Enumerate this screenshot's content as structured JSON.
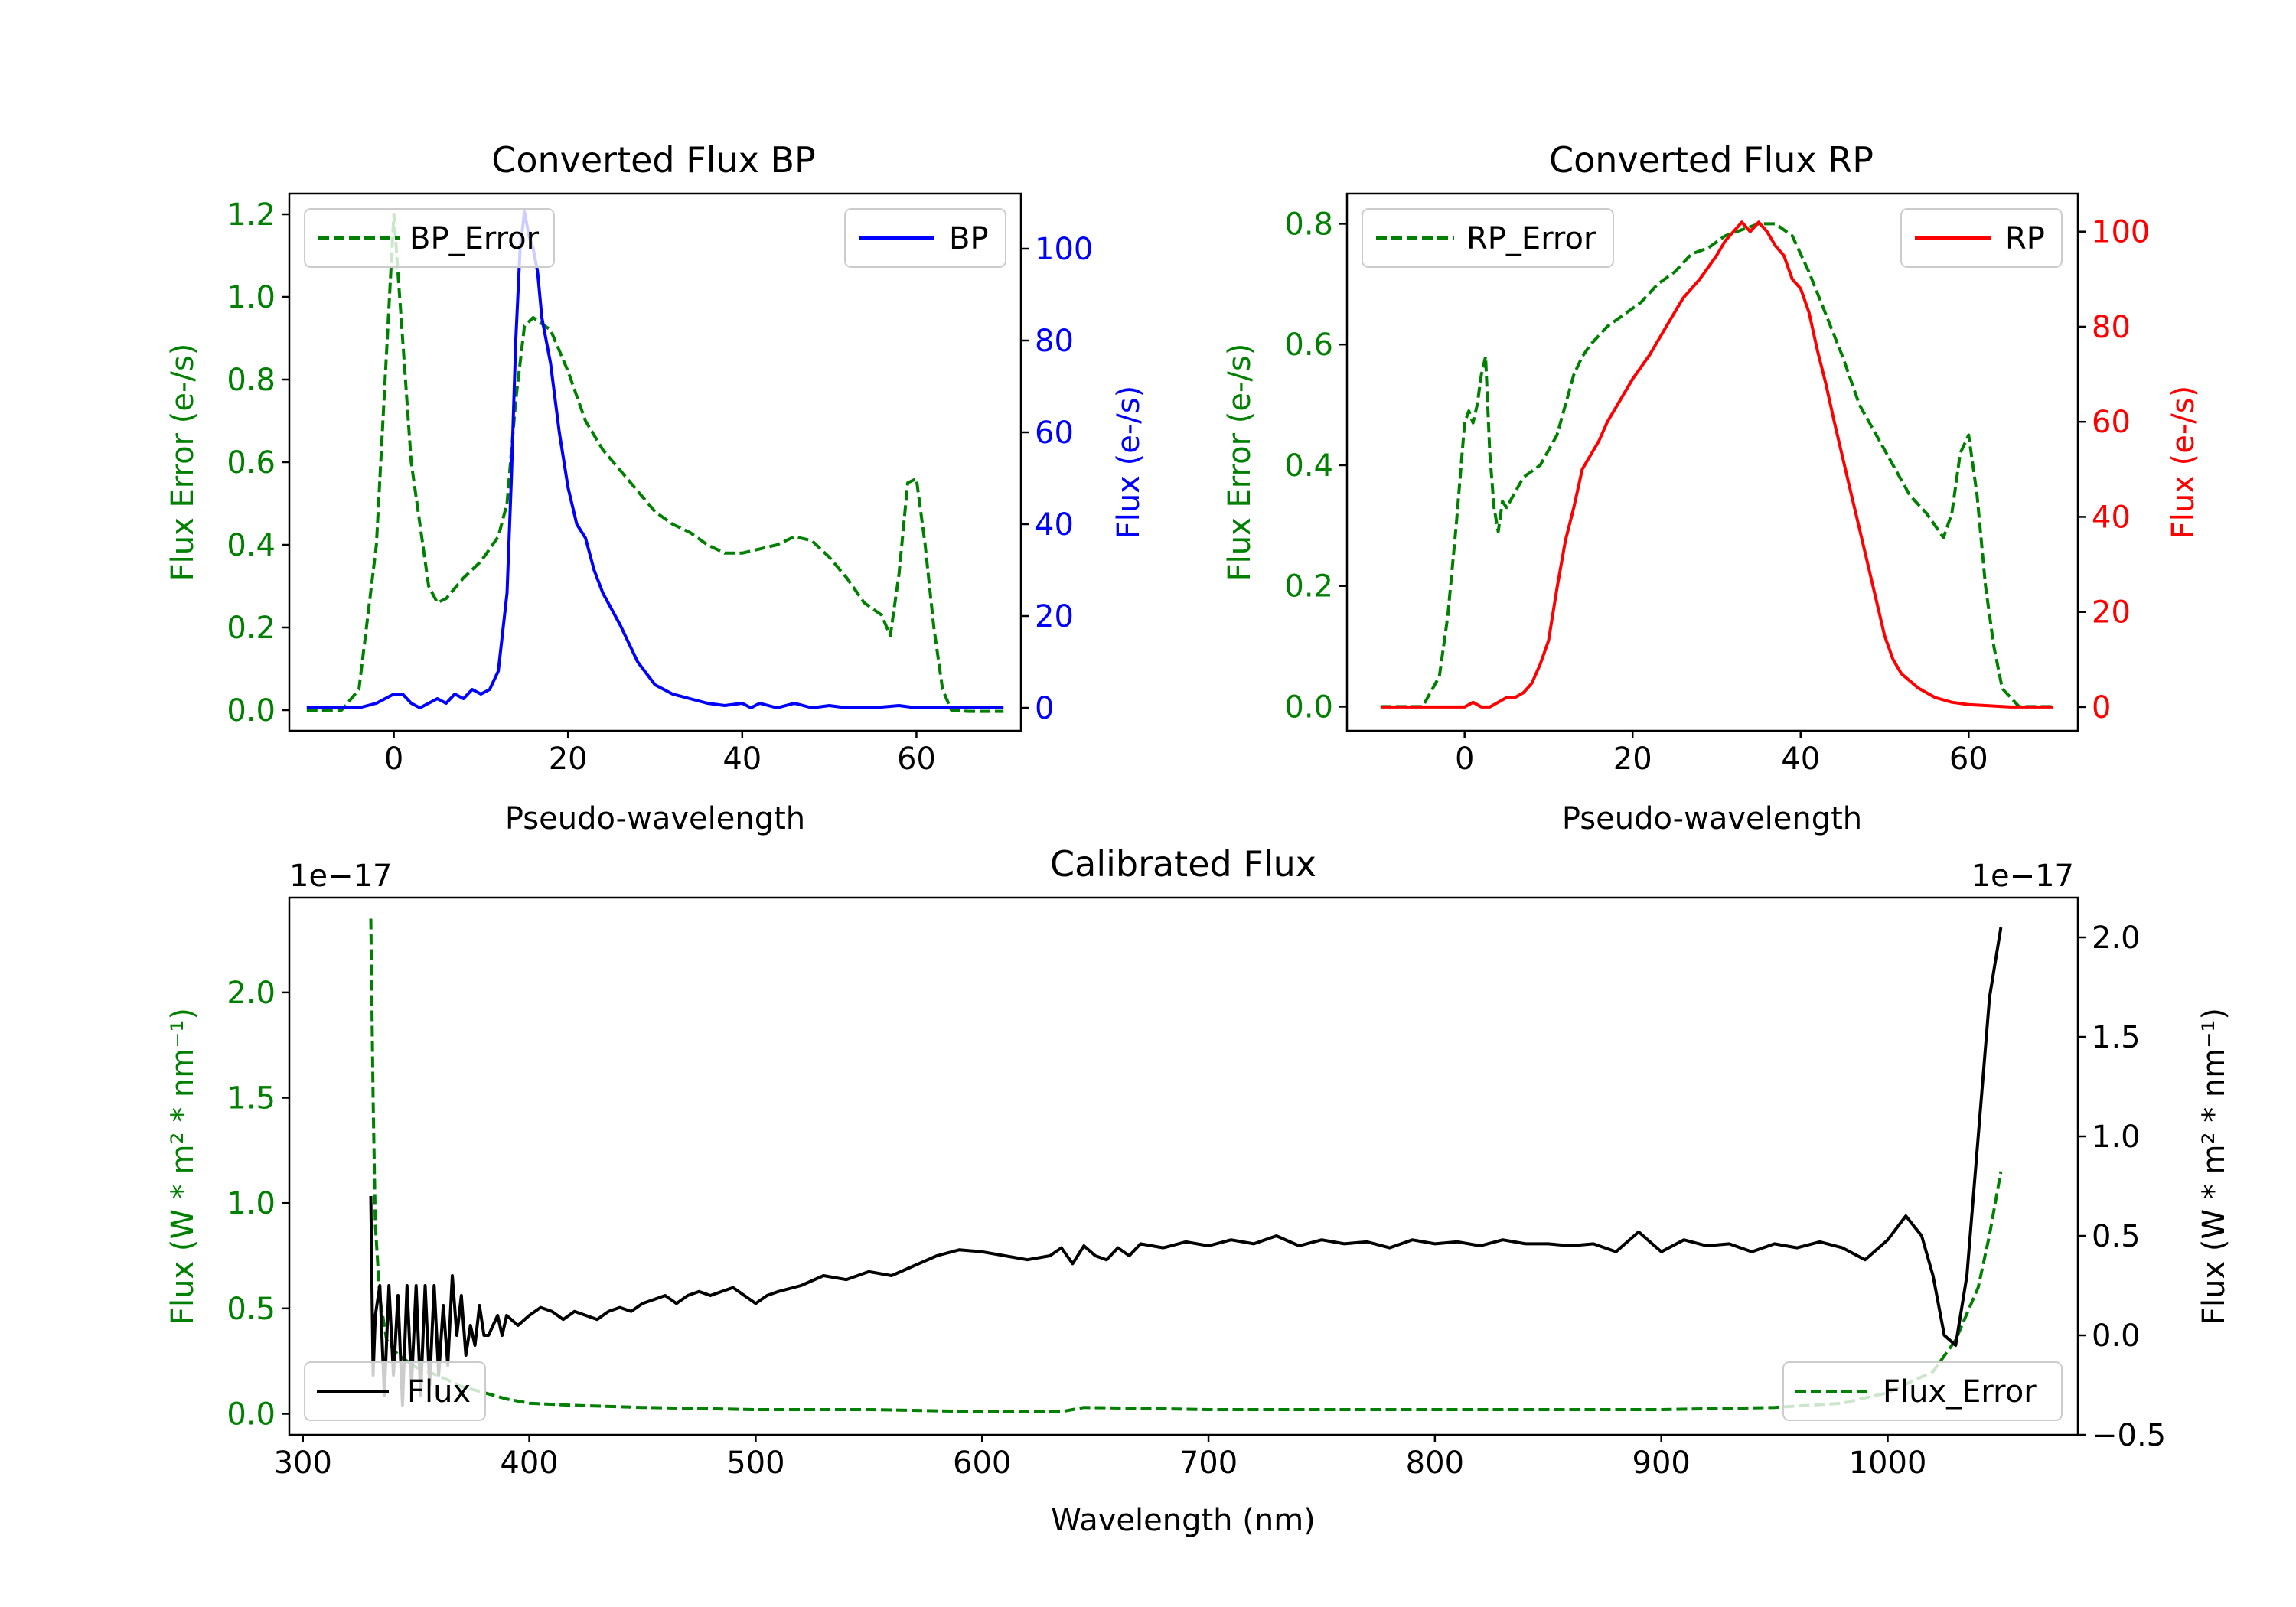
{
  "chart_data": [
    {
      "id": "bp",
      "type": "line",
      "title": "Converted Flux BP",
      "xlabel": "Pseudo-wavelength",
      "xlim": [
        -12,
        72
      ],
      "xticks": [
        0,
        20,
        40,
        60
      ],
      "y_left": {
        "label": "Flux Error (e-/s)",
        "color": "#008000",
        "lim": [
          -0.05,
          1.25
        ],
        "ticks": [
          0.0,
          0.2,
          0.4,
          0.6,
          0.8,
          1.0,
          1.2
        ],
        "ticklabels": [
          "0.0",
          "0.2",
          "0.4",
          "0.6",
          "0.8",
          "1.0",
          "1.2"
        ]
      },
      "y_right": {
        "label": "Flux (e-/s)",
        "color": "#0000ff",
        "lim": [
          -5,
          112
        ],
        "ticks": [
          0,
          20,
          40,
          60,
          80,
          100
        ],
        "ticklabels": [
          "0",
          "20",
          "40",
          "60",
          "80",
          "100"
        ]
      },
      "series": [
        {
          "name": "BP_Error",
          "axis": "left",
          "color": "#008000",
          "dashed": true,
          "x": [
            -10,
            -6,
            -4,
            -2,
            -1,
            0,
            1,
            2,
            3,
            4,
            5,
            6,
            8,
            10,
            12,
            13,
            14,
            15,
            16,
            18,
            20,
            22,
            24,
            26,
            28,
            30,
            32,
            34,
            36,
            38,
            40,
            42,
            44,
            46,
            48,
            50,
            52,
            54,
            56,
            57,
            58,
            59,
            60,
            61,
            62,
            63,
            64,
            66,
            68,
            70
          ],
          "y": [
            0.0,
            0.0,
            0.05,
            0.4,
            0.8,
            1.2,
            0.9,
            0.6,
            0.45,
            0.3,
            0.26,
            0.27,
            0.32,
            0.36,
            0.42,
            0.5,
            0.75,
            0.93,
            0.95,
            0.92,
            0.82,
            0.7,
            0.63,
            0.58,
            0.53,
            0.48,
            0.45,
            0.43,
            0.4,
            0.38,
            0.38,
            0.39,
            0.4,
            0.42,
            0.41,
            0.37,
            0.32,
            0.26,
            0.23,
            0.18,
            0.33,
            0.55,
            0.56,
            0.4,
            0.2,
            0.05,
            0.0,
            -0.003,
            -0.003,
            -0.003
          ]
        },
        {
          "name": "BP",
          "axis": "right",
          "color": "#0000ff",
          "dashed": false,
          "x": [
            -10,
            -4,
            -2,
            0,
            1,
            2,
            3,
            4,
            5,
            6,
            7,
            8,
            9,
            10,
            11,
            12,
            13,
            13.5,
            14,
            14.5,
            15,
            15.5,
            16,
            16.5,
            17,
            18,
            19,
            20,
            21,
            22,
            23,
            24,
            26,
            28,
            30,
            32,
            34,
            36,
            38,
            40,
            41,
            42,
            44,
            46,
            48,
            50,
            52,
            55,
            58,
            60,
            65,
            70
          ],
          "y": [
            0,
            0,
            1,
            3,
            3,
            1,
            0,
            1,
            2,
            1,
            3,
            2,
            4,
            3,
            4,
            8,
            25,
            50,
            80,
            100,
            108,
            103,
            100,
            95,
            85,
            75,
            60,
            48,
            40,
            37,
            30,
            25,
            18,
            10,
            5,
            3,
            2,
            1,
            0.5,
            1,
            0,
            1,
            0,
            1,
            0,
            0.5,
            0,
            0,
            0.5,
            0,
            0,
            0
          ]
        }
      ],
      "legend": [
        {
          "label": "BP_Error",
          "position": "upper-left"
        },
        {
          "label": "BP",
          "position": "upper-right"
        }
      ]
    },
    {
      "id": "rp",
      "type": "line",
      "title": "Converted Flux RP",
      "xlabel": "Pseudo-wavelength",
      "xlim": [
        -14,
        73
      ],
      "xticks": [
        0,
        20,
        40,
        60
      ],
      "y_left": {
        "label": "Flux Error (e-/s)",
        "color": "#008000",
        "lim": [
          -0.04,
          0.85
        ],
        "ticks": [
          0.0,
          0.2,
          0.4,
          0.6,
          0.8
        ],
        "ticklabels": [
          "0.0",
          "0.2",
          "0.4",
          "0.6",
          "0.8"
        ]
      },
      "y_right": {
        "label": "Flux (e-/s)",
        "color": "#ff0000",
        "lim": [
          -5,
          108
        ],
        "ticks": [
          0,
          20,
          40,
          60,
          80,
          100
        ],
        "ticklabels": [
          "0",
          "20",
          "40",
          "60",
          "80",
          "100"
        ]
      },
      "series": [
        {
          "name": "RP_Error",
          "axis": "left",
          "color": "#008000",
          "dashed": true,
          "x": [
            -10,
            -5,
            -3,
            -2,
            -1,
            0,
            0.5,
            1,
            1.5,
            2,
            2.5,
            3,
            3.5,
            4,
            4.5,
            5,
            7,
            9,
            11,
            12,
            13,
            14,
            15,
            17,
            19,
            21,
            23,
            25,
            27,
            29,
            31,
            33,
            35,
            37,
            39,
            41,
            43,
            45,
            47,
            49,
            51,
            53,
            55,
            56,
            57,
            58,
            59,
            60,
            61,
            62,
            63,
            64,
            66,
            70
          ],
          "y": [
            0.0,
            0.0,
            0.05,
            0.15,
            0.3,
            0.47,
            0.49,
            0.47,
            0.5,
            0.55,
            0.58,
            0.42,
            0.33,
            0.29,
            0.34,
            0.33,
            0.38,
            0.4,
            0.45,
            0.5,
            0.55,
            0.58,
            0.6,
            0.63,
            0.65,
            0.67,
            0.7,
            0.72,
            0.75,
            0.76,
            0.78,
            0.79,
            0.8,
            0.8,
            0.78,
            0.72,
            0.65,
            0.58,
            0.5,
            0.45,
            0.4,
            0.35,
            0.32,
            0.3,
            0.28,
            0.32,
            0.42,
            0.45,
            0.35,
            0.2,
            0.1,
            0.03,
            0.0,
            0.0
          ]
        },
        {
          "name": "RP",
          "axis": "right",
          "color": "#ff0000",
          "dashed": false,
          "x": [
            -10,
            -4,
            0,
            1,
            2,
            3,
            4,
            5,
            6,
            7,
            8,
            9,
            10,
            11,
            12,
            13,
            14,
            15,
            16,
            17,
            18,
            20,
            22,
            24,
            26,
            28,
            30,
            31,
            32,
            33,
            34,
            35,
            36,
            37,
            38,
            39,
            40,
            41,
            42,
            43,
            44,
            46,
            48,
            50,
            51,
            52,
            54,
            56,
            58,
            60,
            65,
            70
          ],
          "y": [
            0,
            0,
            0,
            1,
            0,
            0,
            1,
            2,
            2,
            3,
            5,
            9,
            14,
            25,
            35,
            42,
            50,
            53,
            56,
            60,
            63,
            69,
            74,
            80,
            86,
            90,
            95,
            98,
            100,
            102,
            100,
            102,
            100,
            97,
            95,
            90,
            88,
            83,
            75,
            68,
            60,
            45,
            30,
            15,
            10,
            7,
            4,
            2,
            1,
            0.5,
            0,
            0
          ]
        }
      ],
      "legend": [
        {
          "label": "RP_Error",
          "position": "upper-left"
        },
        {
          "label": "RP",
          "position": "upper-right"
        }
      ]
    },
    {
      "id": "cal",
      "type": "line",
      "title": "Calibrated Flux",
      "xlabel": "Wavelength (nm)",
      "xlim": [
        294,
        1084
      ],
      "xticks": [
        300,
        400,
        500,
        600,
        700,
        800,
        900,
        1000
      ],
      "y_left": {
        "label": "Flux (W * m² * nm⁻¹)",
        "offset_text": "1e−17",
        "color": "#008000",
        "lim": [
          -0.1,
          2.45
        ],
        "ticks": [
          0.0,
          0.5,
          1.0,
          1.5,
          2.0
        ],
        "ticklabels": [
          "0.0",
          "0.5",
          "1.0",
          "1.5",
          "2.0"
        ]
      },
      "y_right": {
        "label": "Flux (W * m² * nm⁻¹)",
        "offset_text": "1e−17",
        "color": "#000000",
        "lim": [
          -0.5,
          2.2
        ],
        "ticks": [
          -0.5,
          0.0,
          0.5,
          1.0,
          1.5,
          2.0
        ],
        "ticklabels": [
          "−0.5",
          "0.0",
          "0.5",
          "1.0",
          "1.5",
          "2.0"
        ]
      },
      "series": [
        {
          "name": "Flux_Error",
          "axis": "left",
          "color": "#008000",
          "dashed": true,
          "x": [
            330,
            331,
            332,
            334,
            337,
            342,
            350,
            360,
            370,
            380,
            390,
            400,
            420,
            450,
            500,
            550,
            600,
            635,
            645,
            700,
            800,
            900,
            950,
            980,
            1000,
            1010,
            1020,
            1030,
            1040,
            1045,
            1050
          ],
          "y": [
            2.35,
            1.5,
            0.9,
            0.55,
            0.35,
            0.28,
            0.22,
            0.18,
            0.13,
            0.1,
            0.07,
            0.05,
            0.04,
            0.03,
            0.02,
            0.02,
            0.01,
            0.01,
            0.03,
            0.02,
            0.02,
            0.02,
            0.03,
            0.05,
            0.1,
            0.15,
            0.2,
            0.35,
            0.6,
            0.85,
            1.15
          ]
        },
        {
          "name": "Flux",
          "axis": "right",
          "color": "#000000",
          "dashed": false,
          "x": [
            330,
            331,
            332,
            334,
            336,
            338,
            340,
            342,
            344,
            346,
            348,
            350,
            352,
            354,
            356,
            358,
            360,
            362,
            364,
            366,
            368,
            370,
            372,
            374,
            376,
            378,
            380,
            382,
            384,
            386,
            388,
            390,
            395,
            400,
            405,
            410,
            415,
            420,
            425,
            430,
            435,
            440,
            445,
            450,
            455,
            460,
            465,
            470,
            475,
            480,
            485,
            490,
            495,
            500,
            505,
            510,
            520,
            530,
            540,
            550,
            560,
            570,
            580,
            590,
            600,
            610,
            620,
            630,
            635,
            640,
            645,
            650,
            655,
            660,
            665,
            670,
            680,
            690,
            700,
            710,
            720,
            730,
            740,
            750,
            760,
            770,
            780,
            790,
            800,
            810,
            820,
            830,
            840,
            850,
            860,
            870,
            880,
            890,
            900,
            910,
            920,
            930,
            940,
            950,
            960,
            970,
            980,
            990,
            1000,
            1008,
            1015,
            1020,
            1025,
            1030,
            1035,
            1040,
            1045,
            1050
          ],
          "y": [
            0.7,
            -0.2,
            0.1,
            0.25,
            -0.3,
            0.25,
            -0.2,
            0.2,
            -0.35,
            0.25,
            -0.25,
            0.25,
            -0.3,
            0.25,
            -0.25,
            0.25,
            -0.2,
            0.15,
            -0.15,
            0.3,
            0.0,
            0.2,
            -0.1,
            0.05,
            -0.05,
            0.15,
            0.0,
            0.0,
            0.05,
            0.1,
            0.0,
            0.1,
            0.05,
            0.1,
            0.14,
            0.12,
            0.08,
            0.12,
            0.1,
            0.08,
            0.12,
            0.14,
            0.12,
            0.16,
            0.18,
            0.2,
            0.16,
            0.2,
            0.22,
            0.2,
            0.22,
            0.24,
            0.2,
            0.16,
            0.2,
            0.22,
            0.25,
            0.3,
            0.28,
            0.32,
            0.3,
            0.35,
            0.4,
            0.43,
            0.42,
            0.4,
            0.38,
            0.4,
            0.44,
            0.36,
            0.45,
            0.4,
            0.38,
            0.44,
            0.4,
            0.46,
            0.44,
            0.47,
            0.45,
            0.48,
            0.46,
            0.5,
            0.45,
            0.48,
            0.46,
            0.47,
            0.44,
            0.48,
            0.46,
            0.47,
            0.45,
            0.48,
            0.46,
            0.46,
            0.45,
            0.46,
            0.42,
            0.52,
            0.42,
            0.48,
            0.45,
            0.46,
            0.42,
            0.46,
            0.44,
            0.47,
            0.44,
            0.38,
            0.48,
            0.6,
            0.5,
            0.3,
            0.0,
            -0.05,
            0.3,
            1.0,
            1.7,
            2.05
          ]
        }
      ],
      "legend": [
        {
          "label": "Flux",
          "position": "lower-left"
        },
        {
          "label": "Flux_Error",
          "position": "lower-right"
        }
      ]
    }
  ]
}
